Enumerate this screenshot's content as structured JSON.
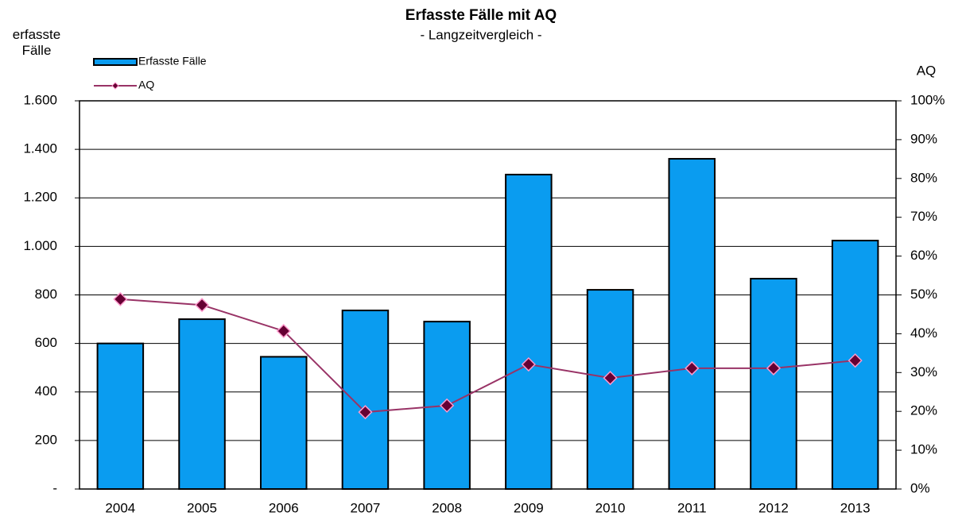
{
  "chart_data": {
    "type": "bar_line",
    "title": "Erfasste Fälle mit AQ",
    "subtitle": "- Langzeitvergleich -",
    "y_label": "erfasste Fälle",
    "y2_label": "AQ",
    "categories": [
      "2004",
      "2005",
      "2006",
      "2007",
      "2008",
      "2009",
      "2010",
      "2011",
      "2012",
      "2013"
    ],
    "series": [
      {
        "name": "Erfasste Fälle",
        "type": "bar",
        "color": "#0a9cf0",
        "axis": "y",
        "values": [
          600,
          700,
          545,
          736,
          690,
          1296,
          821,
          1361,
          867,
          1024
        ]
      },
      {
        "name": "AQ",
        "type": "line",
        "color": "#993366",
        "marker_color": "#660033",
        "axis": "y2",
        "values": [
          48.9,
          47.4,
          40.7,
          19.8,
          21.5,
          32.1,
          28.6,
          31.1,
          31.1,
          33.1
        ]
      }
    ],
    "ylim": [
      0,
      1600
    ],
    "yticks": [
      {
        "value": 0,
        "label": "-"
      },
      200,
      400,
      600,
      800,
      {
        "value": 1000,
        "label": "1.000"
      },
      {
        "value": 1200,
        "label": "1.200"
      },
      {
        "value": 1400,
        "label": "1.400"
      },
      {
        "value": 1600,
        "label": "1.600"
      }
    ],
    "y2lim": [
      0,
      100
    ],
    "y2ticks": [
      {
        "value": 0,
        "label": "0%"
      },
      {
        "value": 10,
        "label": "10%"
      },
      {
        "value": 20,
        "label": "20%"
      },
      {
        "value": 30,
        "label": "30%"
      },
      {
        "value": 40,
        "label": "40%"
      },
      {
        "value": 50,
        "label": "50%"
      },
      {
        "value": 60,
        "label": "60%"
      },
      {
        "value": 70,
        "label": "70%"
      },
      {
        "value": 80,
        "label": "80%"
      },
      {
        "value": 90,
        "label": "90%"
      },
      {
        "value": 100,
        "label": "100%"
      }
    ],
    "grid": true,
    "legend": "top-left"
  }
}
